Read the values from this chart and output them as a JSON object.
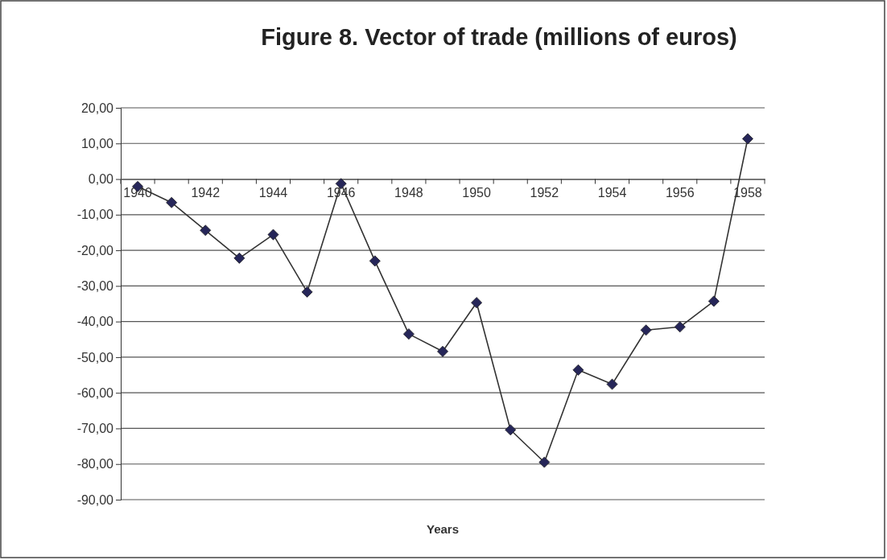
{
  "chart_data": {
    "type": "line",
    "title": "Figure 8. Vector of trade (millions of euros)",
    "xlabel": "Years",
    "categories": [
      "1940",
      null,
      "1942",
      null,
      "1944",
      null,
      "1946",
      null,
      "1948",
      null,
      "1950",
      null,
      "1952",
      null,
      "1954",
      null,
      "1956",
      null,
      "1958"
    ],
    "series": [
      {
        "color": "#262659",
        "values": [
          -2.1,
          -6.6,
          -14.4,
          -22.2,
          -15.6,
          -31.7,
          -1.3,
          -23.0,
          -43.5,
          -48.4,
          -34.7,
          -70.4,
          -79.5,
          -53.6,
          -57.6,
          -42.4,
          -41.5,
          -34.3,
          11.3
        ]
      }
    ],
    "ylim": [
      -90,
      20
    ],
    "yticks": [
      {
        "value": 20,
        "label": "20,00"
      },
      {
        "value": 10,
        "label": "10,00"
      },
      {
        "value": 0,
        "label": "0,00"
      },
      {
        "value": -10,
        "label": "-10,00"
      },
      {
        "value": -20,
        "label": "-20,00"
      },
      {
        "value": -30,
        "label": "-30,00"
      },
      {
        "value": -40,
        "label": "-40,00"
      },
      {
        "value": -50,
        "label": "-50,00"
      },
      {
        "value": -60,
        "label": "-60,00"
      },
      {
        "value": -70,
        "label": "-70,00"
      },
      {
        "value": -80,
        "label": "-80,00"
      },
      {
        "value": -90,
        "label": "-90,00"
      }
    ],
    "grid": "y",
    "marker": "diamond",
    "line_style": "solid"
  }
}
